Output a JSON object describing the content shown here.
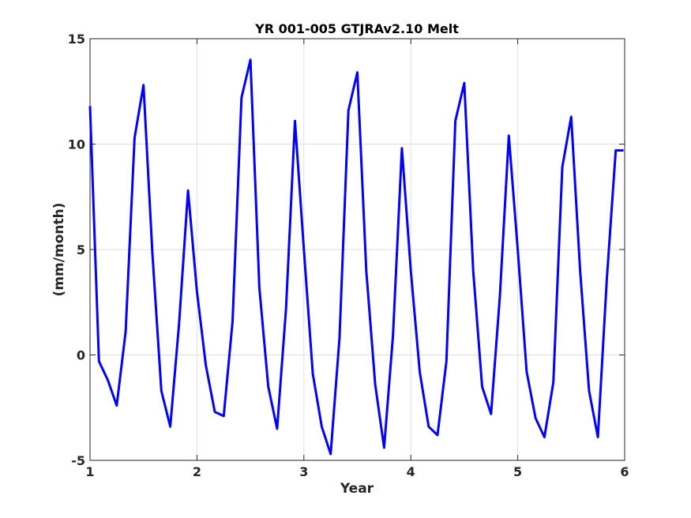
{
  "chart_data": {
    "type": "line",
    "title": "YR 001-005 GTJRAv2.10 Melt",
    "xlabel": "Year",
    "ylabel": "(mm/month)",
    "xlim": [
      1,
      6
    ],
    "ylim": [
      -5,
      15
    ],
    "xticks": [
      "1",
      "2",
      "3",
      "4",
      "5",
      "6"
    ],
    "yticks": [
      "-5",
      "0",
      "5",
      "10",
      "15"
    ],
    "grid": true,
    "series": [
      {
        "color": "#0000ff",
        "x": [
          1.0,
          1.0833,
          1.1667,
          1.25,
          1.3333,
          1.4167,
          1.5,
          1.5833,
          1.6667,
          1.75,
          1.8333,
          1.9167,
          2.0,
          2.0833,
          2.1667,
          2.25,
          2.3333,
          2.4167,
          2.5,
          2.5833,
          2.6667,
          2.75,
          2.8333,
          2.9167,
          3.0,
          3.0833,
          3.1667,
          3.25,
          3.3333,
          3.4167,
          3.5,
          3.5833,
          3.6667,
          3.75,
          3.8333,
          3.9167,
          4.0,
          4.0833,
          4.1667,
          4.25,
          4.3333,
          4.4167,
          4.5,
          4.5833,
          4.6667,
          4.75,
          4.8333,
          4.9167,
          5.0,
          5.0833,
          5.1667,
          5.25,
          5.3333,
          5.4167,
          5.5,
          5.5833,
          5.6667,
          5.75,
          5.8333,
          5.9167,
          5.99
        ],
        "y": [
          11.8,
          -0.3,
          -1.2,
          -2.4,
          1.1,
          10.3,
          12.8,
          4.8,
          -1.7,
          -3.4,
          1.5,
          7.8,
          3.0,
          -0.5,
          -2.7,
          -2.9,
          1.6,
          12.2,
          14.0,
          3.2,
          -1.5,
          -3.5,
          2.2,
          11.1,
          5.0,
          -0.9,
          -3.4,
          -4.7,
          0.8,
          11.6,
          13.4,
          4.0,
          -1.4,
          -4.4,
          0.9,
          9.8,
          4.0,
          -0.8,
          -3.4,
          -3.8,
          -0.3,
          11.1,
          12.9,
          4.0,
          -1.5,
          -2.8,
          2.8,
          10.4,
          5.0,
          -0.8,
          -3.0,
          -3.9,
          -1.3,
          8.9,
          11.3,
          4.0,
          -1.7,
          -3.9,
          3.6,
          9.7,
          9.7
        ]
      }
    ]
  }
}
